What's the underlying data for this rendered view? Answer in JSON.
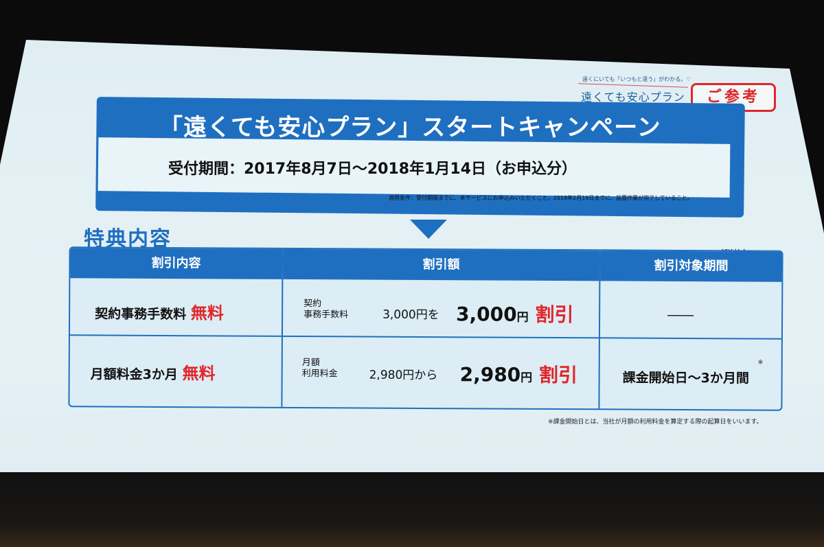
{
  "logo": {
    "tagline": "遠くにいても「いつもと違う」がわかる。♡",
    "name": "遠くても安心プラン"
  },
  "badge": "ご参考",
  "banner": {
    "title": "「遠くても安心プラン」スタートキャンペーン",
    "period": "受付期間：2017年8月7日〜2018年1月14日（お申込分）",
    "condition": "適用条件：受付期間までに、本サービスにお申込みいただくこと。2018年2月19日までに、設置作業が完了していること。"
  },
  "section_title": "特典内容",
  "tax_note": "（税抜）",
  "table": {
    "headers": [
      "割引内容",
      "割引額",
      "割引対象期間"
    ],
    "rows": [
      {
        "item": "契約事務手数料",
        "item_tag": "無料",
        "fee_label": "契約\n事務手数料",
        "from": "3,000円を",
        "amount": "3,000",
        "unit": "円",
        "discount": "割引",
        "period": "――"
      },
      {
        "item": "月額料金3か月",
        "item_tag": "無料",
        "fee_label": "月額\n利用料金",
        "from": "2,980円から",
        "amount": "2,980",
        "unit": "円",
        "discount": "割引",
        "period": "課金開始日〜3か月間",
        "period_mark": "※"
      }
    ]
  },
  "footnote": "※課金開始日とは、当社が月額の利用料金を算定する際の起算日をいいます。",
  "colors": {
    "accent": "#1f6fc0",
    "highlight": "#e0262a"
  }
}
